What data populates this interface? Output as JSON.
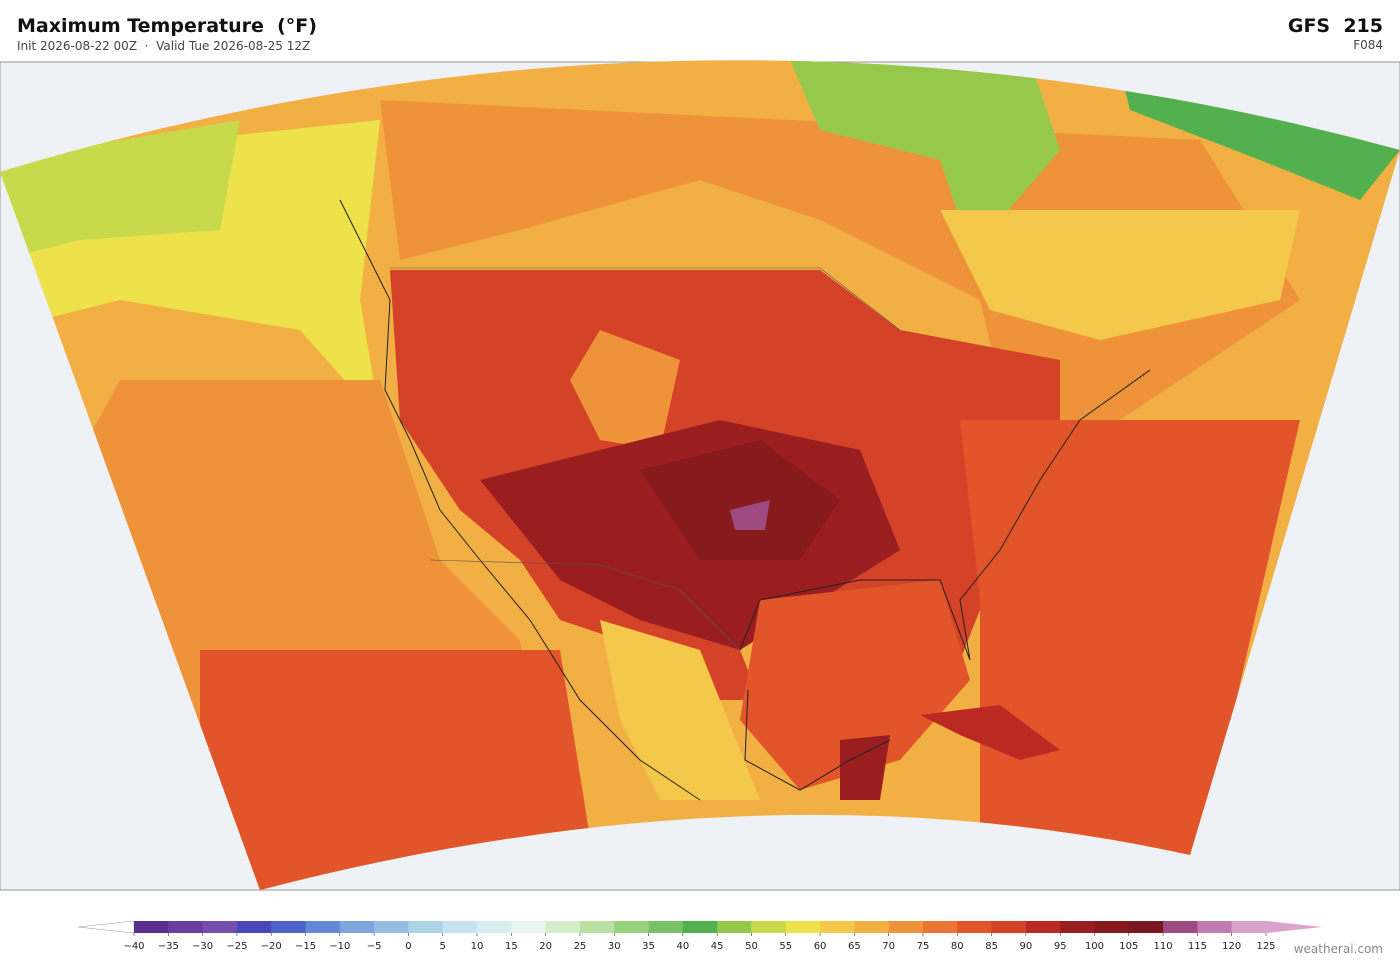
{
  "header": {
    "title": "Maximum Temperature  (°F)",
    "subtitle": "Init 2026-08-22 00Z  ·  Valid Tue 2026-08-25 12Z",
    "model": "GFS  215",
    "forecast_hour": "F084"
  },
  "colorbar": {
    "labels": [
      "−40",
      "−35",
      "−30",
      "−25",
      "−20",
      "−15",
      "−10",
      "−5",
      "0",
      "5",
      "10",
      "15",
      "20",
      "25",
      "30",
      "35",
      "40",
      "45",
      "50",
      "55",
      "60",
      "65",
      "70",
      "75",
      "80",
      "85",
      "90",
      "95",
      "100",
      "105",
      "110",
      "115",
      "120",
      "125"
    ],
    "colors": [
      "#5b2d8e",
      "#6a3d9e",
      "#7350b0",
      "#4a48b8",
      "#4f62c8",
      "#6388d6",
      "#7da6dc",
      "#95bde2",
      "#add3e9",
      "#c4e3ef",
      "#d8eef2",
      "#e8f4ee",
      "#d5ecc8",
      "#b9e0a0",
      "#9ad17f",
      "#78c266",
      "#52b04f",
      "#96c84c",
      "#c9d94c",
      "#eee24a",
      "#f4c84a",
      "#f2b044",
      "#ee933a",
      "#ea7632",
      "#e2552a",
      "#d44228",
      "#bb2a22",
      "#9a1e20",
      "#861a1c",
      "#7a1620",
      "#9c4a80",
      "#c07ab4",
      "#d9a3cc"
    ],
    "extend_colors": [
      "#ffffff",
      "#d9a3cc"
    ]
  },
  "footer": {
    "credit": "weatherai.com"
  }
}
